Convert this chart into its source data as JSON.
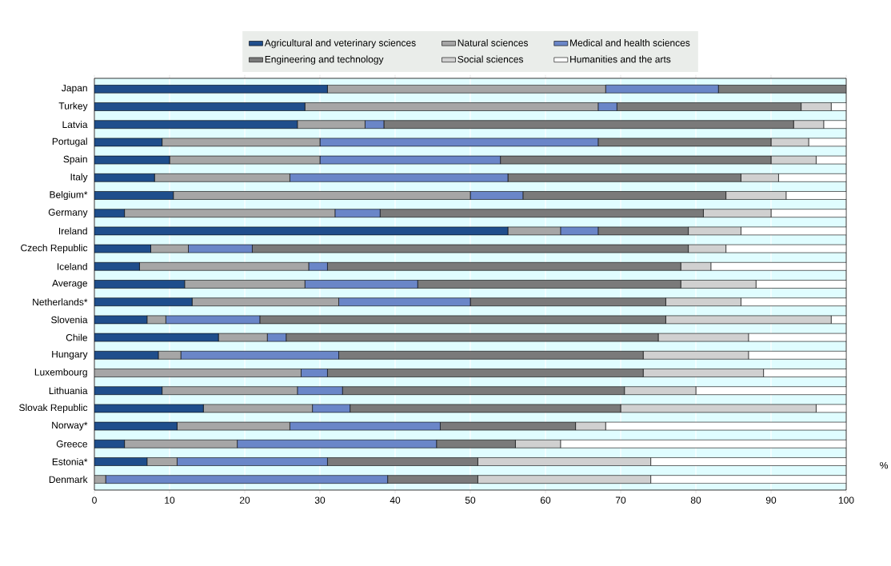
{
  "chart_data": {
    "type": "bar",
    "orientation": "horizontal",
    "stacked": true,
    "categories": [
      "Japan",
      "Turkey",
      "Latvia",
      "Portugal",
      "Spain",
      "Italy",
      "Belgium*",
      "Germany",
      "Ireland",
      "Czech Republic",
      "Iceland",
      "Average",
      "Netherlands*",
      "Slovenia",
      "Chile",
      "Hungary",
      "Luxembourg",
      "Lithuania",
      "Slovak Republic",
      "Norway*",
      "Greece",
      "Estonia*",
      "Denmark"
    ],
    "series": [
      {
        "name": "Agricultural and veterinary sciences",
        "color": "#1f4e8c",
        "values": [
          31,
          28,
          27,
          9,
          10,
          8,
          10.5,
          4,
          55,
          7.5,
          6,
          12,
          13,
          7,
          16.5,
          8.5,
          0,
          9,
          14.5,
          11,
          4,
          7,
          0
        ]
      },
      {
        "name": "Natural sciences",
        "color": "#a6a6a6",
        "values": [
          37,
          39,
          9,
          21,
          20,
          18,
          39.5,
          28,
          7,
          5,
          22.5,
          16,
          19.5,
          2.5,
          6.5,
          3,
          27.5,
          18,
          14.5,
          15,
          15,
          4,
          1.5
        ]
      },
      {
        "name": "Medical and  health sciences",
        "color": "#6a86c8",
        "values": [
          15,
          2.5,
          2.5,
          37,
          24,
          29,
          7,
          6,
          5,
          8.5,
          2.5,
          15,
          17.5,
          12.5,
          2.5,
          21,
          3.5,
          6,
          5,
          20,
          26.5,
          20,
          37.5
        ]
      },
      {
        "name": "Engineering and technology",
        "color": "#7a7a7a",
        "values": [
          17,
          24.5,
          54.5,
          23,
          36,
          31,
          27,
          43,
          12,
          58,
          47,
          35,
          26,
          54,
          49.5,
          40.5,
          42,
          37.5,
          36,
          18,
          10.5,
          20,
          12
        ]
      },
      {
        "name": "Social sciences",
        "color": "#d0d0d0",
        "values": [
          0,
          4,
          4,
          5,
          6,
          5,
          8,
          9,
          7,
          5,
          4,
          10,
          10,
          22,
          12,
          14,
          16,
          9.5,
          26,
          4,
          6,
          23,
          23
        ]
      },
      {
        "name": "Humanities and the arts",
        "color": "#ffffff",
        "values": [
          0,
          2,
          3,
          5,
          4,
          9,
          8,
          10,
          14,
          16,
          18,
          12,
          14,
          2,
          13,
          13,
          11,
          20,
          4,
          32,
          38,
          26,
          26
        ]
      }
    ],
    "xlim": [
      0,
      100
    ],
    "xticks": [
      0,
      10,
      20,
      30,
      40,
      50,
      60,
      70,
      80,
      90,
      100
    ],
    "xlabel": "%",
    "grid": "x",
    "legend": "top"
  }
}
